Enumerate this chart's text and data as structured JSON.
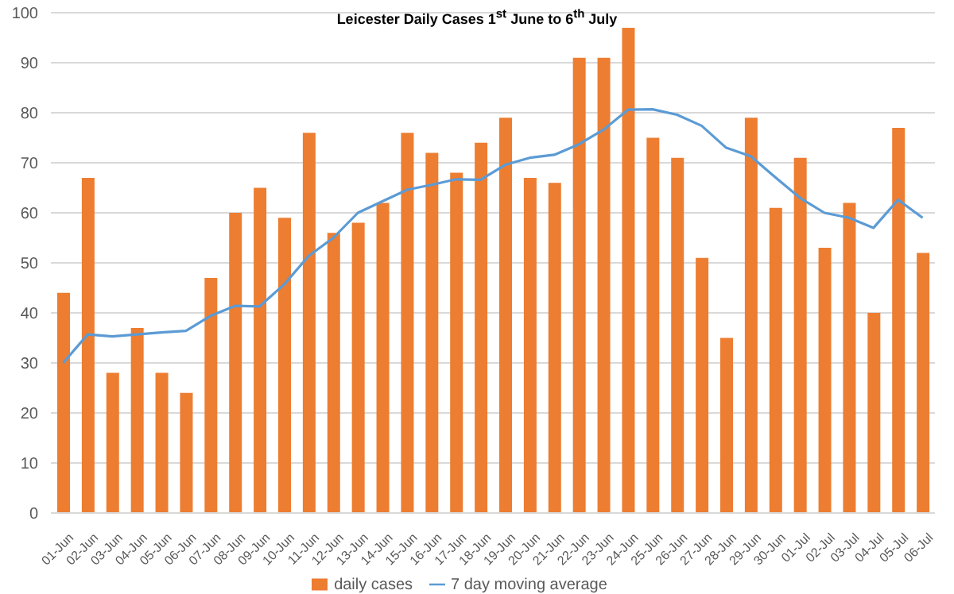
{
  "chart_data": {
    "type": "bar",
    "title": "Leicester Daily Cases 1$^{st}$ June to 6$^{th}$ July",
    "categories": [
      "01-Jun",
      "02-Jun",
      "03-Jun",
      "04-Jun",
      "05-Jun",
      "06-Jun",
      "07-Jun",
      "08-Jun",
      "09-Jun",
      "10-Jun",
      "11-Jun",
      "12-Jun",
      "13-Jun",
      "14-Jun",
      "15-Jun",
      "16-Jun",
      "17-Jun",
      "18-Jun",
      "19-Jun",
      "20-Jun",
      "21-Jun",
      "22-Jun",
      "23-Jun",
      "24-Jun",
      "25-Jun",
      "26-Jun",
      "27-Jun",
      "28-Jun",
      "29-Jun",
      "30-Jun",
      "01-Jul",
      "02-Jul",
      "03-Jul",
      "04-Jul",
      "05-Jul",
      "06-Jul"
    ],
    "series": [
      {
        "name": "daily cases",
        "color": "#ed7d31",
        "values": [
          44,
          67,
          28,
          37,
          28,
          24,
          47,
          60,
          65,
          59,
          76,
          56,
          58,
          62,
          76,
          72,
          68,
          74,
          79,
          67,
          66,
          91,
          91,
          97,
          75,
          71,
          51,
          35,
          79,
          61,
          71,
          53,
          62,
          40,
          77,
          52
        ]
      },
      {
        "name": "7 day moving average",
        "type": "line",
        "color": "#5b9bd5",
        "values": [
          30,
          35.7,
          35.3,
          35.7,
          36.1,
          36.4,
          39.4,
          41.4,
          41.3,
          45.7,
          51.4,
          55,
          60,
          62.3,
          64.6,
          65.6,
          66.7,
          66.6,
          69.6,
          71,
          71.6,
          73.7,
          76.6,
          80.6,
          80.7,
          79.6,
          77.4,
          73,
          71.3,
          67.1,
          63,
          60,
          59,
          57,
          62.6,
          59
        ]
      }
    ],
    "ylim": [
      0,
      100
    ],
    "yticks": [
      0,
      10,
      20,
      30,
      40,
      50,
      60,
      70,
      80,
      90,
      100
    ],
    "grid": "y",
    "legend": "bottom"
  }
}
